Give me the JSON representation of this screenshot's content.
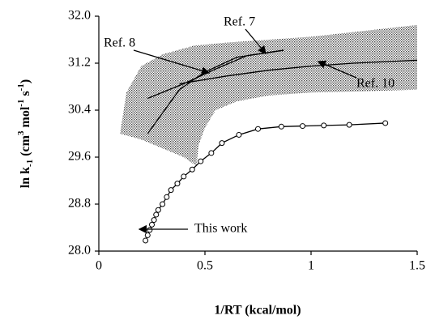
{
  "chart_data": {
    "type": "line",
    "xlabel": "1/RT (kcal/mol)",
    "ylabel_parts": [
      "ln k",
      "-1",
      " (cm",
      "3",
      " mol",
      "-1",
      " s",
      "-1",
      ")"
    ],
    "xlim": [
      0,
      1.5
    ],
    "ylim": [
      28.0,
      32.0
    ],
    "xticks": [
      0,
      0.5,
      1,
      1.5
    ],
    "yticks": [
      {
        "value": 28.0,
        "label": "28.0"
      },
      {
        "value": 28.8,
        "label": "28.8"
      },
      {
        "value": 29.6,
        "label": "29.6"
      },
      {
        "value": 30.4,
        "label": "30.4"
      },
      {
        "value": 31.2,
        "label": "31.2"
      },
      {
        "value": 32.0,
        "label": "32.0"
      }
    ],
    "shaded_region": {
      "x": [
        0.1,
        0.13,
        0.2,
        0.3,
        0.45,
        0.6,
        0.8,
        1.0,
        1.25,
        1.5,
        1.5,
        1.25,
        1.0,
        0.8,
        0.65,
        0.55,
        0.5,
        0.47,
        0.46,
        0.4,
        0.3,
        0.2
      ],
      "y": [
        30.0,
        30.7,
        31.15,
        31.35,
        31.5,
        31.55,
        31.6,
        31.65,
        31.75,
        31.85,
        30.75,
        30.72,
        30.7,
        30.65,
        30.55,
        30.4,
        30.1,
        29.8,
        29.45,
        29.6,
        29.75,
        29.9
      ]
    },
    "series": [
      {
        "name": "This work",
        "color": "#000000",
        "marker": "circle",
        "x": [
          0.22,
          0.23,
          0.24,
          0.25,
          0.26,
          0.27,
          0.28,
          0.3,
          0.32,
          0.34,
          0.37,
          0.4,
          0.44,
          0.48,
          0.53,
          0.58,
          0.66,
          0.75,
          0.86,
          0.96,
          1.06,
          1.18,
          1.35
        ],
        "values": [
          28.18,
          28.27,
          28.36,
          28.45,
          28.53,
          28.62,
          28.7,
          28.8,
          28.92,
          29.04,
          29.15,
          29.27,
          29.39,
          29.53,
          29.67,
          29.84,
          29.98,
          30.08,
          30.12,
          30.13,
          30.14,
          30.15,
          30.18
        ]
      },
      {
        "name": "Ref. 7",
        "color": "#000000",
        "marker": "none",
        "x": [
          0.23,
          0.3,
          0.38,
          0.5,
          0.65,
          0.87
        ],
        "values": [
          30.0,
          30.35,
          30.75,
          31.05,
          31.3,
          31.42
        ]
      },
      {
        "name": "Ref. 8",
        "color": "#000000",
        "marker": "none",
        "x": [
          0.23,
          0.4,
          0.55,
          0.7,
          0.87
        ],
        "values": [
          30.6,
          30.85,
          31.1,
          31.33,
          31.42
        ]
      },
      {
        "name": "Ref. 10",
        "color": "#000000",
        "marker": "none",
        "x": [
          0.38,
          0.6,
          0.8,
          1.0,
          1.2,
          1.5
        ],
        "values": [
          30.85,
          30.98,
          31.08,
          31.15,
          31.2,
          31.25
        ]
      }
    ]
  }
}
